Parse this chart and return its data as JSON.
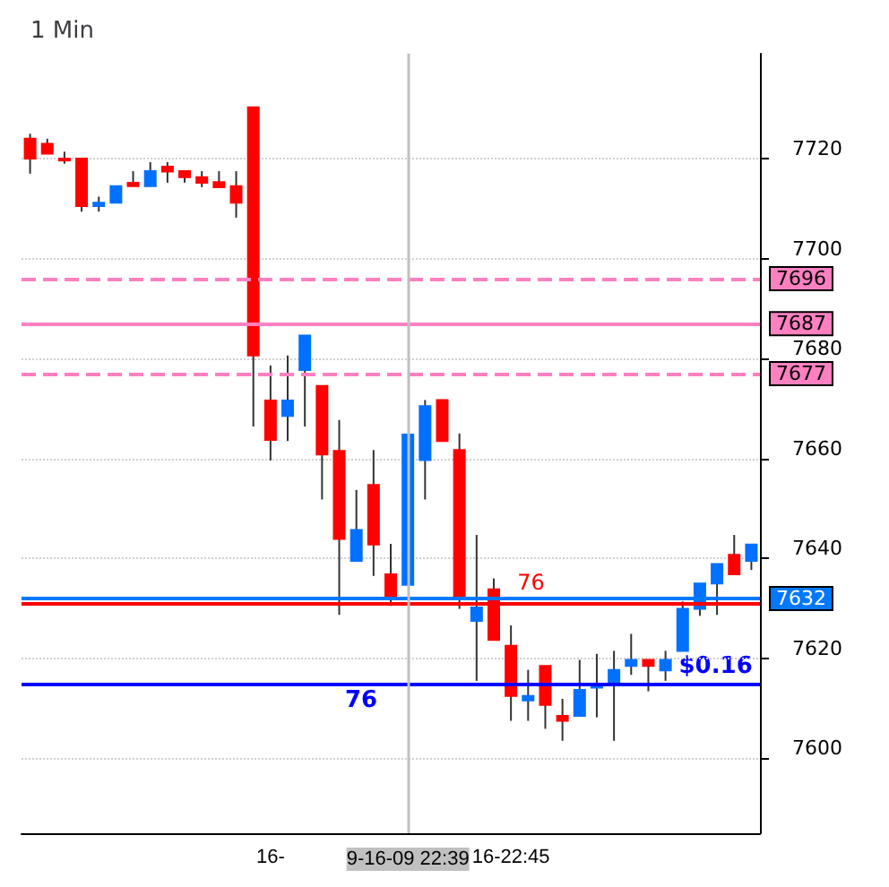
{
  "chart_data": {
    "type": "candlestick",
    "title": "1 Min",
    "categories": [
      null,
      null,
      null,
      null,
      null,
      null,
      null,
      null,
      null,
      null,
      null,
      null,
      null,
      null,
      "16-",
      null,
      null,
      null,
      null,
      null,
      null,
      null,
      "9-16-09 22:39",
      null,
      null,
      null,
      null,
      null,
      "16-22:45",
      null,
      null,
      null,
      null,
      null,
      null,
      null,
      null,
      null,
      null,
      null,
      null,
      null,
      null
    ],
    "ohlc": [
      [
        7724,
        7725,
        7717,
        7720
      ],
      [
        7723,
        7724,
        7721,
        7721
      ],
      [
        7720,
        7721.4,
        7719,
        7720
      ],
      [
        7720,
        7720,
        7709.4,
        7710.5
      ],
      [
        7710.5,
        7712.4,
        7709.4,
        7711.2
      ],
      [
        7711.2,
        7714.5,
        7711.2,
        7714.5
      ],
      [
        7715.2,
        7717.5,
        7714.5,
        7714.5
      ],
      [
        7714.5,
        7719.3,
        7714.5,
        7717.5
      ],
      [
        7718.4,
        7719.3,
        7715.2,
        7717.4
      ],
      [
        7717.5,
        7717.5,
        7715.2,
        7716.3
      ],
      [
        7716.3,
        7717.5,
        7714.3,
        7715.2
      ],
      [
        7715.3,
        7717.5,
        7714.3,
        7714.3
      ],
      [
        7714.5,
        7717.5,
        7708.2,
        7711.2
      ],
      [
        7730.3,
        7730.3,
        7666.4,
        7680.6
      ],
      [
        7671.6,
        7678.6,
        7659.6,
        7663.7
      ],
      [
        7668.5,
        7680.6,
        7663.5,
        7671.6
      ],
      [
        7677.7,
        7684.6,
        7666.4,
        7684.6
      ],
      [
        7674.5,
        7674.5,
        7651.8,
        7660.8
      ],
      [
        7661.5,
        7667.7,
        7628.7,
        7643.9
      ],
      [
        7639.5,
        7653.7,
        7639.5,
        7645.7
      ],
      [
        7654.7,
        7661.7,
        7636.5,
        7642.8
      ],
      [
        7636.8,
        7642.9,
        7630.5,
        7632
      ],
      [
        7634.7,
        7664.8,
        7634.7,
        7664.8
      ],
      [
        7659.7,
        7671.7,
        7651.8,
        7670.5
      ],
      [
        7671.7,
        7671.7,
        7663.5,
        7663.5
      ],
      [
        7661.7,
        7665,
        7629.9,
        7632.5
      ],
      [
        7627.5,
        7644.7,
        7615.5,
        7630.2
      ],
      [
        7633.8,
        7636,
        7623.7,
        7623.7
      ],
      [
        7622.5,
        7626.6,
        7607.5,
        7612.5
      ],
      [
        7611.6,
        7617.7,
        7607.5,
        7612.5
      ],
      [
        7618.5,
        7618.5,
        7605.9,
        7610.7
      ],
      [
        7608.5,
        7611.9,
        7603.5,
        7607.5
      ],
      [
        7608.5,
        7619.7,
        7608.5,
        7613.7
      ],
      [
        7614.5,
        7620.9,
        7608.2,
        7614.5
      ],
      [
        7614.9,
        7621.5,
        7603.5,
        7617.7
      ],
      [
        7618.5,
        7624.9,
        7616.7,
        7619.7
      ],
      [
        7619.7,
        7619.7,
        7613.4,
        7618.5
      ],
      [
        7617.6,
        7621.5,
        7615.5,
        7619.7
      ],
      [
        7621.5,
        7631.4,
        7621.5,
        7629.9
      ],
      [
        7629.9,
        7635,
        7628.5,
        7635
      ],
      [
        7635,
        7638.9,
        7628.7,
        7638.9
      ],
      [
        7640.7,
        7644.7,
        7636.8,
        7636.8
      ],
      [
        7639.5,
        7642.8,
        7637.7,
        7642.8
      ]
    ],
    "colors": [
      "#ff0000",
      "#ff0000",
      "#ff0000",
      "#ff0000",
      "#0070ff",
      "#0070ff",
      "#ff0000",
      "#0070ff",
      "#ff0000",
      "#ff0000",
      "#ff0000",
      "#ff0000",
      "#ff0000",
      "#ff0000",
      "#ff0000",
      "#0070ff",
      "#0070ff",
      "#ff0000",
      "#ff0000",
      "#0070ff",
      "#ff0000",
      "#ff0000",
      "#0070ff",
      "#0070ff",
      "#ff0000",
      "#ff0000",
      "#0070ff",
      "#ff0000",
      "#ff0000",
      "#0070ff",
      "#ff0000",
      "#ff0000",
      "#0070ff",
      "#0070ff",
      "#0070ff",
      "#0070ff",
      "#ff0000",
      "#0070ff",
      "#0070ff",
      "#0070ff",
      "#0070ff",
      "#ff0000",
      "#0070ff"
    ],
    "ylim": [
      7585,
      7741
    ],
    "yticks": [
      7600,
      7620,
      7640,
      7660,
      7680,
      7700,
      7720
    ],
    "grid": true,
    "ref_lines": [
      {
        "axis": "y",
        "value": 7696,
        "label": "7696",
        "color": "#ff80c0",
        "line_style": "dashed"
      },
      {
        "axis": "y",
        "value": 7687,
        "label": "7687",
        "color": "#ff80c0",
        "line_style": "solid"
      },
      {
        "axis": "y",
        "value": 7677,
        "label": "7677",
        "color": "#ff80c0",
        "line_style": "dashed"
      },
      {
        "axis": "y",
        "value": 7632,
        "label": "7632",
        "color": "#0078ff",
        "line_style": "solid"
      },
      {
        "axis": "y",
        "value": 7631,
        "color": "#ff0000",
        "line_style": "solid"
      },
      {
        "axis": "y",
        "value": 7615,
        "color": "#0000ff",
        "line_style": "solid"
      },
      {
        "axis": "x",
        "value": "9-16-09 22:39",
        "color": "#c0c0c0",
        "line_style": "solid"
      }
    ],
    "annotations": [
      {
        "text": "76",
        "y": 7633
      },
      "76",
      "$0.16"
    ]
  }
}
